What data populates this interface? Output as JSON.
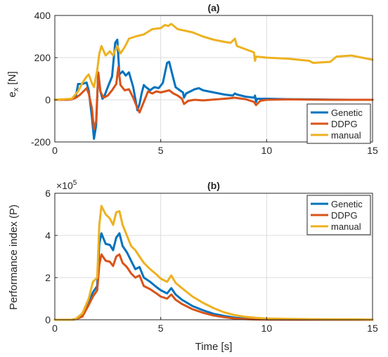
{
  "chart_data": [
    {
      "type": "line",
      "title": "(a)",
      "xlabel": "",
      "ylabel": "e_x [N]",
      "xlim": [
        0,
        15
      ],
      "ylim": [
        -200,
        400
      ],
      "xticks": [
        0,
        5,
        10,
        15
      ],
      "yticks": [
        -200,
        0,
        200,
        400
      ],
      "grid": true,
      "legend_location": "bottom-right",
      "series": [
        {
          "name": "Genetic",
          "color": "#0072BD",
          "x": [
            0,
            0.5,
            0.8,
            1.0,
            1.1,
            1.3,
            1.5,
            1.6,
            1.75,
            1.85,
            1.95,
            2.05,
            2.15,
            2.25,
            2.35,
            2.5,
            2.7,
            2.85,
            2.95,
            3.05,
            3.2,
            3.35,
            3.5,
            3.7,
            3.9,
            4.0,
            4.1,
            4.2,
            4.3,
            4.5,
            4.7,
            4.9,
            5.1,
            5.3,
            5.4,
            5.55,
            5.7,
            5.9,
            6.05,
            6.1,
            6.2,
            6.4,
            6.6,
            6.8,
            7.0,
            7.5,
            8.0,
            8.4,
            8.5,
            8.6,
            9.0,
            9.4,
            9.45,
            9.5,
            9.55,
            10.0,
            11.0,
            12.0,
            13.0,
            14.0,
            15.0
          ],
          "y": [
            0,
            0,
            2,
            20,
            75,
            75,
            82,
            45,
            -80,
            -185,
            -120,
            130,
            40,
            5,
            20,
            60,
            110,
            270,
            285,
            120,
            135,
            115,
            130,
            60,
            -50,
            -20,
            30,
            70,
            60,
            45,
            60,
            55,
            80,
            175,
            180,
            120,
            60,
            45,
            35,
            10,
            30,
            40,
            50,
            55,
            45,
            35,
            25,
            20,
            30,
            25,
            15,
            10,
            20,
            -10,
            5,
            5,
            3,
            2,
            1,
            0,
            0
          ]
        },
        {
          "name": "DDPG",
          "color": "#D95319",
          "x": [
            0,
            0.5,
            0.8,
            1.0,
            1.2,
            1.5,
            1.6,
            1.75,
            1.85,
            1.95,
            2.05,
            2.15,
            2.3,
            2.5,
            2.7,
            2.9,
            3.0,
            3.1,
            3.3,
            3.5,
            3.7,
            3.9,
            4.0,
            4.2,
            4.4,
            4.6,
            4.8,
            5.0,
            5.2,
            5.4,
            5.6,
            5.8,
            6.0,
            6.1,
            6.3,
            6.6,
            7.0,
            8.0,
            8.5,
            9.0,
            9.4,
            9.5,
            9.7,
            10.0,
            11.0,
            12.0,
            13.0,
            14.0,
            15.0
          ],
          "y": [
            0,
            0,
            2,
            10,
            25,
            55,
            30,
            -40,
            -140,
            -100,
            130,
            40,
            10,
            20,
            45,
            75,
            155,
            70,
            45,
            50,
            10,
            -40,
            -60,
            -10,
            40,
            30,
            40,
            35,
            40,
            45,
            30,
            20,
            5,
            -20,
            -5,
            0,
            -3,
            5,
            10,
            3,
            -10,
            -25,
            -5,
            0,
            2,
            1,
            0,
            0,
            0
          ]
        },
        {
          "name": "manual",
          "color": "#EDB120",
          "x": [
            0,
            0.8,
            1.1,
            1.3,
            1.5,
            1.6,
            1.75,
            1.85,
            2.0,
            2.1,
            2.2,
            2.4,
            2.6,
            2.75,
            2.85,
            2.95,
            3.1,
            3.3,
            3.5,
            3.8,
            4.2,
            4.6,
            5.0,
            5.2,
            5.35,
            5.5,
            5.8,
            6.5,
            7.0,
            7.5,
            8.0,
            8.3,
            8.5,
            8.6,
            9.0,
            9.4,
            9.45,
            9.5,
            10.0,
            11.0,
            12.0,
            12.2,
            13.0,
            13.3,
            14.0,
            15.0
          ],
          "y": [
            0,
            5,
            40,
            80,
            110,
            120,
            80,
            60,
            140,
            220,
            255,
            210,
            230,
            210,
            235,
            255,
            220,
            250,
            290,
            300,
            310,
            335,
            340,
            355,
            350,
            360,
            335,
            320,
            300,
            285,
            275,
            270,
            290,
            255,
            240,
            225,
            185,
            205,
            200,
            195,
            185,
            175,
            180,
            205,
            210,
            190
          ]
        }
      ]
    },
    {
      "type": "line",
      "title": "(b)",
      "xlabel": "Time [s]",
      "ylabel": "Performance index (P)",
      "y_exponent_label": "×10",
      "y_exponent_power": "5",
      "y_scale": 100000,
      "xlim": [
        0,
        15
      ],
      "ylim": [
        0,
        600000
      ],
      "xticks": [
        0,
        5,
        10,
        15
      ],
      "yticks": [
        0,
        200000,
        400000,
        600000
      ],
      "ytick_labels": [
        "0",
        "2",
        "4",
        "6"
      ],
      "grid": true,
      "legend_location": "top-right",
      "series": [
        {
          "name": "Genetic",
          "color": "#0072BD",
          "x": [
            0,
            0.8,
            1.0,
            1.3,
            1.6,
            1.8,
            2.0,
            2.1,
            2.2,
            2.4,
            2.6,
            2.75,
            2.9,
            3.05,
            3.2,
            3.4,
            3.6,
            3.8,
            4.0,
            4.2,
            4.5,
            4.8,
            5.0,
            5.3,
            5.5,
            5.7,
            6.0,
            6.5,
            7.0,
            7.5,
            8.0,
            8.5,
            9.0,
            9.5,
            10.0,
            11.0,
            12.0,
            13.0,
            14.0,
            15.0
          ],
          "y": [
            0,
            0,
            4000,
            20000,
            80000,
            130000,
            160000,
            360000,
            410000,
            360000,
            355000,
            330000,
            390000,
            410000,
            350000,
            320000,
            280000,
            240000,
            250000,
            200000,
            180000,
            155000,
            140000,
            125000,
            150000,
            120000,
            95000,
            65000,
            45000,
            28000,
            18000,
            10000,
            5000,
            3000,
            1500,
            1000,
            500,
            300,
            200,
            0
          ]
        },
        {
          "name": "DDPG",
          "color": "#D95319",
          "x": [
            0,
            0.8,
            1.0,
            1.3,
            1.6,
            1.8,
            2.0,
            2.1,
            2.2,
            2.4,
            2.6,
            2.75,
            2.9,
            3.05,
            3.2,
            3.4,
            3.6,
            3.8,
            4.0,
            4.2,
            4.5,
            4.8,
            5.0,
            5.3,
            5.5,
            5.7,
            6.0,
            6.5,
            7.0,
            7.5,
            8.0,
            8.5,
            9.0,
            9.5,
            10.0,
            11.0,
            12.0,
            13.0,
            14.0,
            15.0
          ],
          "y": [
            0,
            0,
            3000,
            15000,
            70000,
            110000,
            140000,
            260000,
            310000,
            280000,
            275000,
            255000,
            300000,
            310000,
            270000,
            250000,
            220000,
            200000,
            210000,
            160000,
            145000,
            125000,
            110000,
            100000,
            120000,
            95000,
            75000,
            50000,
            33000,
            20000,
            12000,
            6000,
            3000,
            1500,
            800,
            500,
            300,
            200,
            100,
            0
          ]
        },
        {
          "name": "manual",
          "color": "#EDB120",
          "x": [
            0,
            0.8,
            1.0,
            1.3,
            1.6,
            1.8,
            2.0,
            2.1,
            2.2,
            2.4,
            2.6,
            2.75,
            2.9,
            3.05,
            3.2,
            3.4,
            3.6,
            3.8,
            4.0,
            4.2,
            4.5,
            4.8,
            5.0,
            5.3,
            5.5,
            5.7,
            6.0,
            6.5,
            7.0,
            7.5,
            8.0,
            8.5,
            9.0,
            9.5,
            10.0,
            11.0,
            12.0,
            13.0,
            14.0,
            15.0
          ],
          "y": [
            0,
            0,
            5000,
            30000,
            100000,
            180000,
            200000,
            450000,
            540000,
            500000,
            480000,
            450000,
            510000,
            515000,
            450000,
            400000,
            350000,
            330000,
            300000,
            270000,
            240000,
            215000,
            195000,
            180000,
            210000,
            175000,
            150000,
            110000,
            80000,
            55000,
            35000,
            22000,
            14000,
            9000,
            6000,
            4000,
            3000,
            2000,
            2000,
            1000
          ]
        }
      ]
    }
  ]
}
